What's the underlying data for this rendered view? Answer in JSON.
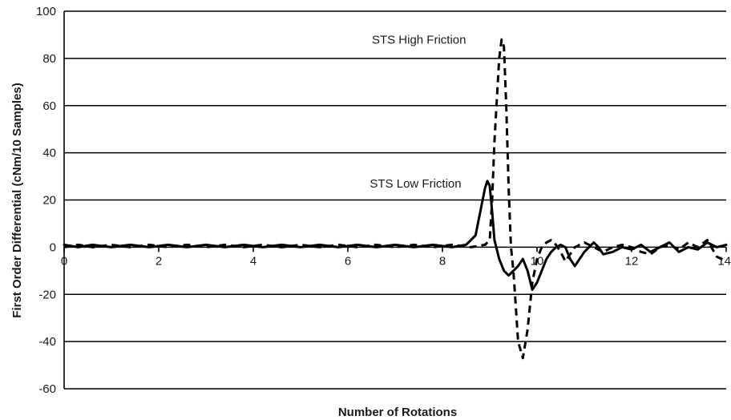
{
  "chart_data": {
    "type": "line",
    "title": "",
    "xlabel": "Number of Rotations",
    "ylabel": "First Order Differential (cNm/10 Samples)",
    "xlim": [
      0,
      14
    ],
    "ylim": [
      -60,
      100
    ],
    "xticks": [
      0,
      2,
      4,
      6,
      8,
      10,
      12,
      14
    ],
    "yticks": [
      -60,
      -40,
      -20,
      0,
      20,
      40,
      60,
      80,
      100
    ],
    "grid": "horizontal",
    "legend": "none",
    "annotations": [
      {
        "text": "STS High Friction",
        "x": 8.5,
        "y": 88
      },
      {
        "text": "STS Low Friction",
        "x": 8.4,
        "y": 27
      }
    ],
    "series": [
      {
        "style": "solid",
        "color": "#000000",
        "x": [
          0,
          0.3,
          0.6,
          1.0,
          1.4,
          1.8,
          2.2,
          2.6,
          3.0,
          3.4,
          3.8,
          4.2,
          4.6,
          5.0,
          5.4,
          5.8,
          6.2,
          6.6,
          7.0,
          7.4,
          7.8,
          8.2,
          8.5,
          8.7,
          8.8,
          8.9,
          8.95,
          9.0,
          9.05,
          9.1,
          9.2,
          9.3,
          9.4,
          9.5,
          9.6,
          9.7,
          9.8,
          9.9,
          10.0,
          10.1,
          10.2,
          10.3,
          10.4,
          10.5,
          10.6,
          10.7,
          10.8,
          10.9,
          11.0,
          11.1,
          11.2,
          11.3,
          11.4,
          11.6,
          11.8,
          12.0,
          12.2,
          12.4,
          12.6,
          12.8,
          13.0,
          13.2,
          13.4,
          13.6,
          13.8,
          14.0
        ],
        "y": [
          1,
          0,
          1,
          0,
          1,
          0,
          1,
          0,
          1,
          0,
          1,
          0,
          1,
          0,
          1,
          0,
          1,
          0,
          1,
          0,
          1,
          0,
          1,
          5,
          15,
          25,
          28,
          26,
          15,
          3,
          -5,
          -10,
          -12,
          -10,
          -8,
          -5,
          -10,
          -18,
          -15,
          -10,
          -5,
          -2,
          0,
          1,
          0,
          -5,
          -8,
          -5,
          -2,
          0,
          2,
          0,
          -3,
          -2,
          0,
          -1,
          1,
          -2,
          0,
          2,
          -2,
          0,
          -1,
          2,
          0,
          1
        ]
      },
      {
        "style": "dashed",
        "color": "#000000",
        "x": [
          0,
          0.3,
          0.6,
          1.0,
          1.4,
          1.8,
          2.2,
          2.6,
          3.0,
          3.4,
          3.8,
          4.2,
          4.6,
          5.0,
          5.4,
          5.8,
          6.2,
          6.6,
          7.0,
          7.4,
          7.8,
          8.2,
          8.6,
          8.9,
          9.0,
          9.05,
          9.1,
          9.2,
          9.25,
          9.3,
          9.35,
          9.4,
          9.45,
          9.5,
          9.55,
          9.6,
          9.7,
          9.8,
          9.9,
          10.0,
          10.1,
          10.2,
          10.3,
          10.4,
          10.5,
          10.6,
          10.7,
          10.8,
          10.9,
          11.0,
          11.2,
          11.4,
          11.6,
          11.8,
          12.0,
          12.2,
          12.4,
          12.6,
          12.8,
          13.0,
          13.2,
          13.4,
          13.6,
          13.8,
          14.0
        ],
        "y": [
          0,
          1,
          0,
          1,
          0,
          1,
          0,
          1,
          0,
          1,
          0,
          1,
          0,
          1,
          0,
          1,
          0,
          1,
          0,
          1,
          0,
          1,
          0,
          1,
          3,
          20,
          45,
          80,
          88,
          85,
          60,
          25,
          0,
          -10,
          -25,
          -40,
          -47,
          -35,
          -15,
          -5,
          0,
          2,
          3,
          1,
          -2,
          -6,
          -3,
          0,
          1,
          2,
          0,
          -2,
          0,
          1,
          0,
          -2,
          -3,
          0,
          1,
          -1,
          2,
          0,
          3,
          -4,
          -6
        ]
      }
    ]
  }
}
